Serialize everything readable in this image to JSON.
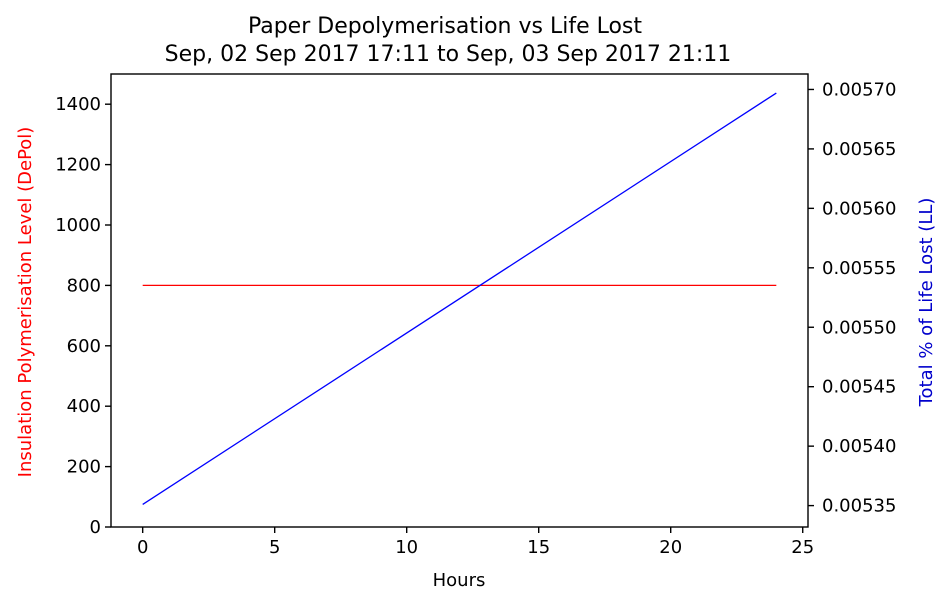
{
  "chart_data": {
    "type": "line",
    "title": "Paper Depolymerisation vs Life Lost",
    "subtitle": "Sep, 02 Sep 2017 17:11 to Sep, 03 Sep 2017 21:11",
    "xlabel": "Hours",
    "ylabel_left": "Insulation Polymerisation Level (DePol)",
    "ylabel_right": "Total % of Life Lost (LL)",
    "xlim": [
      -1.2,
      25.2
    ],
    "ylim_left": [
      0,
      1500
    ],
    "ylim_right": [
      0.005332,
      0.005713
    ],
    "xticks": [
      0,
      5,
      10,
      15,
      20,
      25
    ],
    "xtick_labels": [
      "0",
      "5",
      "10",
      "15",
      "20",
      "25"
    ],
    "yticks_left": [
      0,
      200,
      400,
      600,
      800,
      1000,
      1200,
      1400
    ],
    "ytick_labels_left": [
      "0",
      "200",
      "400",
      "600",
      "800",
      "1000",
      "1200",
      "1400"
    ],
    "yticks_right": [
      0.00535,
      0.0054,
      0.00545,
      0.0055,
      0.00555,
      0.0056,
      0.00565,
      0.0057
    ],
    "ytick_labels_right": [
      "0.00535",
      "0.00540",
      "0.00545",
      "0.00550",
      "0.00555",
      "0.00560",
      "0.00565",
      "0.00570"
    ],
    "grid": false,
    "colors": {
      "left_axis": "#ff0000",
      "right_axis": "#0000cc"
    },
    "series": [
      {
        "axis": "left",
        "color": "#ff0000",
        "x": [
          0,
          24
        ],
        "y": [
          800,
          800
        ]
      },
      {
        "axis": "right",
        "color": "#0000ff",
        "x": [
          0,
          24
        ],
        "y": [
          0.005351,
          0.005697
        ]
      }
    ]
  }
}
